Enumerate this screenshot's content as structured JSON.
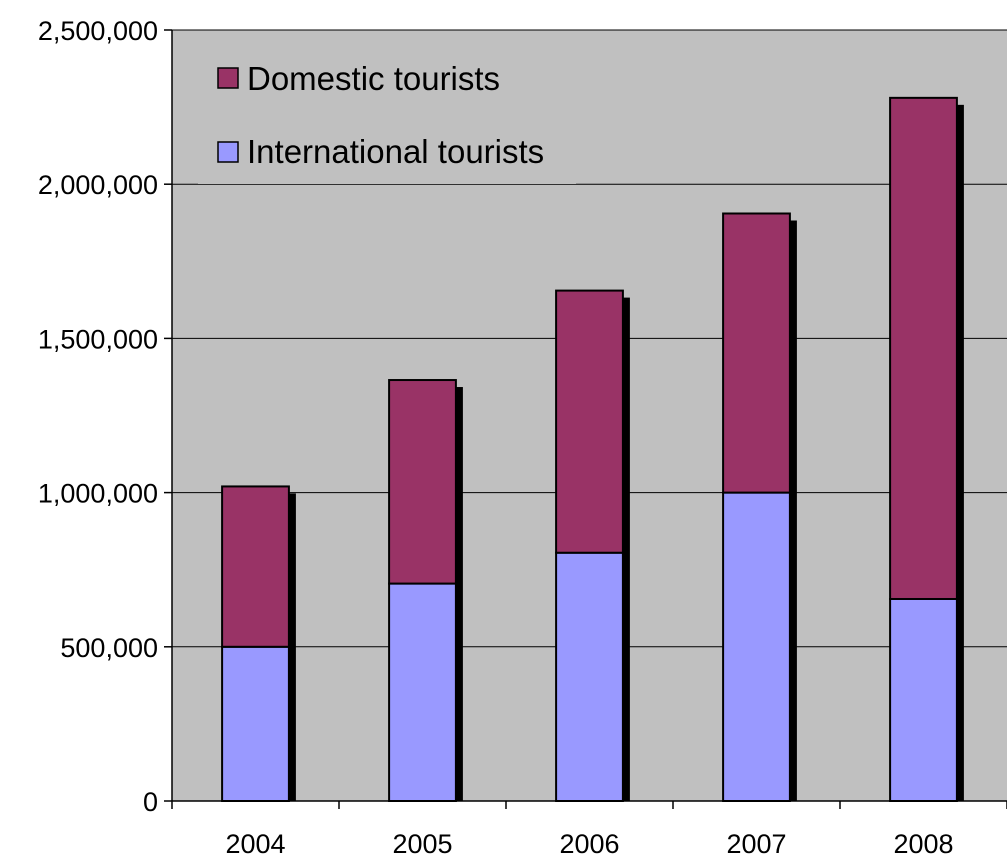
{
  "chart_data": {
    "type": "bar",
    "stacked": true,
    "title": "",
    "xlabel": "",
    "ylabel": "",
    "categories": [
      "2004",
      "2005",
      "2006",
      "2007",
      "2008"
    ],
    "series": [
      {
        "name": "International tourists",
        "color": "#9999ff",
        "values": [
          500000,
          705000,
          805000,
          1000000,
          655000
        ]
      },
      {
        "name": "Domestic tourists",
        "color": "#993366",
        "values": [
          520000,
          660000,
          850000,
          905000,
          1625000
        ]
      }
    ],
    "ylim": [
      0,
      2500000
    ],
    "yticks": [
      "0",
      "500,000",
      "1,000,000",
      "1,500,000",
      "2,000,000",
      "2,500,000"
    ],
    "grid": true,
    "legend_position": "top-left",
    "plot_background": "#c0c0c0"
  }
}
